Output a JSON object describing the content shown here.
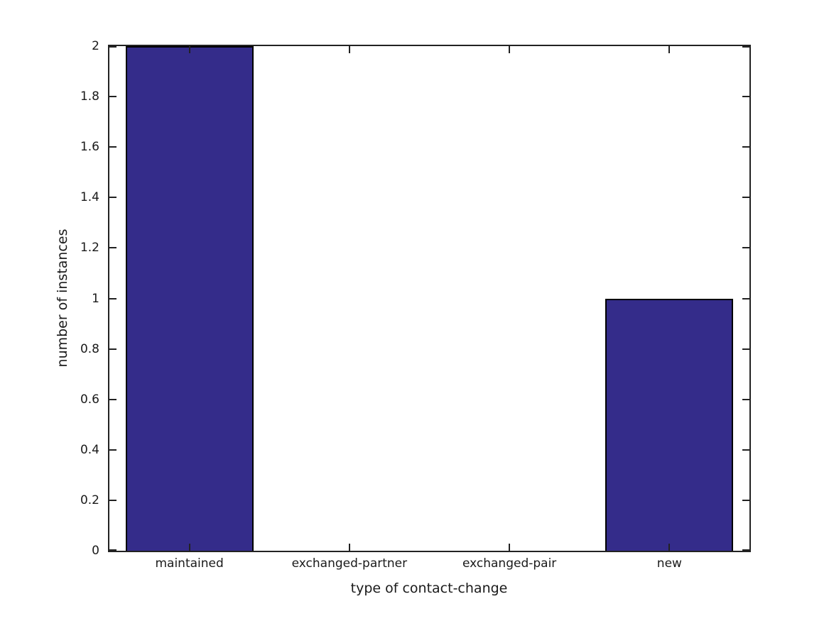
{
  "chart_data": {
    "type": "bar",
    "title": "",
    "categories": [
      "maintained",
      "exchanged-partner",
      "exchanged-pair",
      "new"
    ],
    "values": [
      2,
      0,
      0,
      1
    ],
    "xlabel": "type of contact-change",
    "ylabel": "number of instances",
    "ylim": [
      0,
      2
    ],
    "yticks": [
      0,
      0.2,
      0.4,
      0.6,
      0.8,
      1,
      1.2,
      1.4,
      1.6,
      1.8,
      2
    ],
    "ytick_labels": [
      "0",
      "0.2",
      "0.4",
      "0.6",
      "0.8",
      "1",
      "1.2",
      "1.4",
      "1.6",
      "1.8",
      "2"
    ],
    "grid": false,
    "legend": null,
    "bar_width_frac": 0.8,
    "colors": {
      "bar_fill": "#342c8a",
      "bar_edge": "#000000",
      "axis": "#222222",
      "text": "#1a1a1a",
      "background": "#ffffff"
    }
  }
}
